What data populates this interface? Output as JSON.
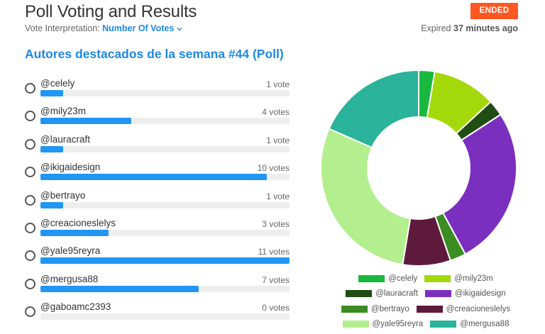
{
  "header": {
    "title": "Poll Voting and Results",
    "interp_label": "Vote Interpretation:",
    "interp_value": "Number Of Votes",
    "status_badge": "ENDED",
    "expired_prefix": "Expired",
    "expired_value": "37 minutes ago"
  },
  "poll": {
    "title": "Autores destacados de la semana #44 (Poll)",
    "options": [
      {
        "name": "@celely",
        "votes_label": "1 vote",
        "votes": 1,
        "color": "#19b83f"
      },
      {
        "name": "@mily23m",
        "votes_label": "4 votes",
        "votes": 4,
        "color": "#a3d90b"
      },
      {
        "name": "@lauracraft",
        "votes_label": "1 vote",
        "votes": 1,
        "color": "#1f4d14"
      },
      {
        "name": "@ikigaidesign",
        "votes_label": "10 votes",
        "votes": 10,
        "color": "#7b2fbf"
      },
      {
        "name": "@bertrayo",
        "votes_label": "1 vote",
        "votes": 1,
        "color": "#3b8d22"
      },
      {
        "name": "@creacioneslelys",
        "votes_label": "3 votes",
        "votes": 3,
        "color": "#5e1a3c"
      },
      {
        "name": "@yale95reyra",
        "votes_label": "11 votes",
        "votes": 11,
        "color": "#b3ef8e"
      },
      {
        "name": "@mergusa88",
        "votes_label": "7 votes",
        "votes": 7,
        "color": "#2bb39b"
      },
      {
        "name": "@gaboamc2393",
        "votes_label": "0 votes",
        "votes": 0,
        "color": "#cccccc"
      }
    ]
  },
  "chart_data": {
    "type": "pie",
    "donut": true,
    "categories": [
      "@celely",
      "@mily23m",
      "@lauracraft",
      "@ikigaidesign",
      "@bertrayo",
      "@creacioneslelys",
      "@yale95reyra",
      "@mergusa88"
    ],
    "values": [
      1,
      4,
      1,
      10,
      1,
      3,
      11,
      7
    ],
    "colors": [
      "#19b83f",
      "#a3d90b",
      "#1f4d14",
      "#7b2fbf",
      "#3b8d22",
      "#5e1a3c",
      "#b3ef8e",
      "#2bb39b"
    ],
    "legend_position": "bottom"
  }
}
